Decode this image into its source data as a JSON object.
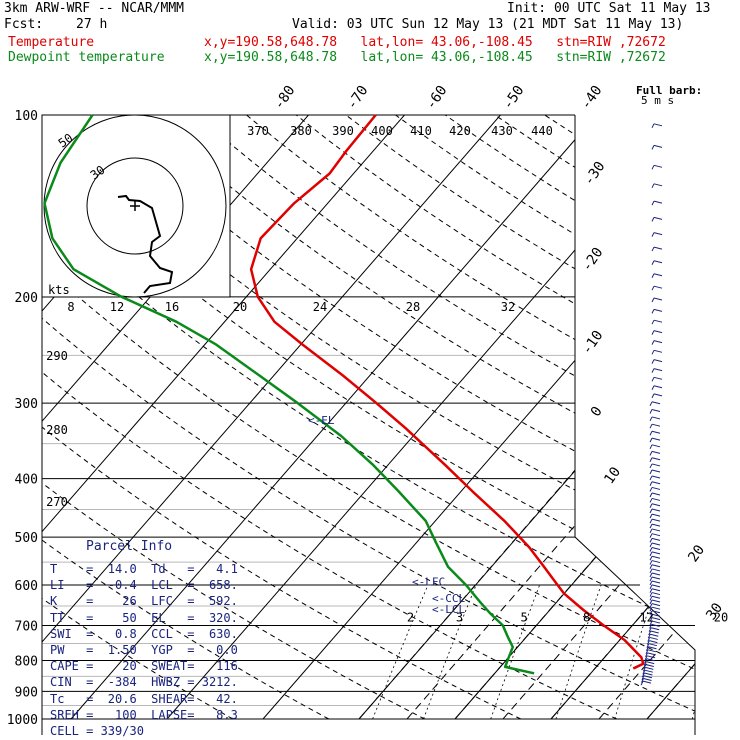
{
  "header": {
    "model": "3km ARW-WRF -- NCAR/MMM",
    "init": "Init: 00 UTC Sat 11 May 13",
    "fcst_label": "Fcst:",
    "fcst_value": "27 h",
    "valid": "Valid: 03 UTC Sun 12 May 13 (21 MDT Sat 11 May 13)",
    "temp_label": "Temperature",
    "temp_loc": "x,y=190.58,648.78   lat,lon= 43.06,-108.45   stn=RIW ,72672",
    "dew_label": "Dewpoint temperature",
    "dew_loc": "x,y=190.58,648.78   lat,lon= 43.06,-108.45   stn=RIW ,72672"
  },
  "colors": {
    "temperature": "#e00000",
    "dewpoint": "#0a8a1a",
    "annotation": "#1a237e",
    "grid": "#000000"
  },
  "parcel_info": {
    "title": "Parcel Info",
    "rows": [
      {
        "k1": "T",
        "v1": "14.0",
        "k2": "Td",
        "v2": "4.1"
      },
      {
        "k1": "LI",
        "v1": "-0.4",
        "k2": "LCL",
        "v2": "658."
      },
      {
        "k1": "K",
        "v1": "26",
        "k2": "LFC",
        "v2": "592."
      },
      {
        "k1": "TT",
        "v1": "50",
        "k2": "EL",
        "v2": "320."
      },
      {
        "k1": "SWI",
        "v1": "0.8",
        "k2": "CCL",
        "v2": "630."
      },
      {
        "k1": "PW",
        "v1": "1.50",
        "k2": "YGP",
        "v2": "0.0"
      },
      {
        "k1": "CAPE",
        "v1": "20",
        "k2": "SWEAT",
        "v2": "116"
      },
      {
        "k1": "CIN",
        "v1": "-384",
        "k2": "HWBZ",
        "v2": "3212."
      },
      {
        "k1": "Tc",
        "v1": "20.6",
        "k2": "SHEAR",
        "v2": "42."
      },
      {
        "k1": "SREH",
        "v1": "100",
        "k2": "LAPSE",
        "v2": "8.3"
      }
    ],
    "cell": "CELL = 339/30"
  },
  "full_barb_label": "Full barb:",
  "full_barb_units": "5 m s",
  "hodograph": {
    "units": "kts",
    "ring_labels": [
      "50",
      "30"
    ],
    "speed_ticks": [
      "8",
      "12",
      "16",
      "20",
      "24",
      "28",
      "32"
    ]
  },
  "chart_data": {
    "type": "line",
    "title": "",
    "xlabel": "",
    "ylabel": "",
    "pressure_ticks": [
      "100",
      "200",
      "300",
      "400",
      "500",
      "600",
      "700",
      "800",
      "900",
      "1000"
    ],
    "temperature_ticks": [
      "-80",
      "-70",
      "-60",
      "-50",
      "-40",
      "-30",
      "-20",
      "-10",
      "0",
      "10",
      "20",
      "30",
      "40"
    ],
    "theta_labels": [
      "370",
      "380",
      "390",
      "400",
      "410",
      "420",
      "430",
      "440"
    ],
    "theta_low_labels": [
      "290",
      "280",
      "270"
    ],
    "mixing_ratio_labels": [
      "2",
      "3",
      "5",
      "8",
      "12",
      "20"
    ],
    "markers": [
      {
        "label": "<-EL",
        "p": 320
      },
      {
        "label": "<-LFC",
        "p": 592
      },
      {
        "label": "<-CCL",
        "p": 630
      },
      {
        "label": "<-LCL",
        "p": 658
      }
    ],
    "series": [
      {
        "name": "Temperature",
        "pressure": [
          825,
          810,
          790,
          770,
          740,
          700,
          660,
          620,
          590,
          560,
          520,
          470,
          420,
          380,
          330,
          300,
          270,
          240,
          220,
          200,
          180,
          160,
          140,
          125,
          115,
          100
        ],
        "temp": [
          14,
          14.6,
          13.8,
          12.5,
          10.5,
          7.0,
          3.5,
          0.0,
          -2.2,
          -4.5,
          -7.8,
          -12.8,
          -18.8,
          -24.0,
          -31.5,
          -36.8,
          -42.8,
          -49.8,
          -54.8,
          -58.8,
          -62.0,
          -63.8,
          -63.5,
          -62.5,
          -62.8,
          -63.0
        ]
      },
      {
        "name": "Dewpoint temperature",
        "pressure": [
          840,
          820,
          790,
          760,
          730,
          700,
          670,
          640,
          600,
          560,
          510,
          470,
          420,
          380,
          340,
          300,
          270,
          240,
          220,
          200,
          180,
          160,
          140,
          120,
          100
        ],
        "temp": [
          4.1,
          0.5,
          0.0,
          -0.5,
          -2.0,
          -3.5,
          -5.8,
          -8.0,
          -11.0,
          -14.5,
          -18.0,
          -21.0,
          -26.5,
          -31.5,
          -37.5,
          -45.0,
          -51.5,
          -58.8,
          -65.0,
          -73.0,
          -80.5,
          -85.5,
          -89.5,
          -91.5,
          -92.5
        ]
      }
    ],
    "wind_barbs": true
  }
}
